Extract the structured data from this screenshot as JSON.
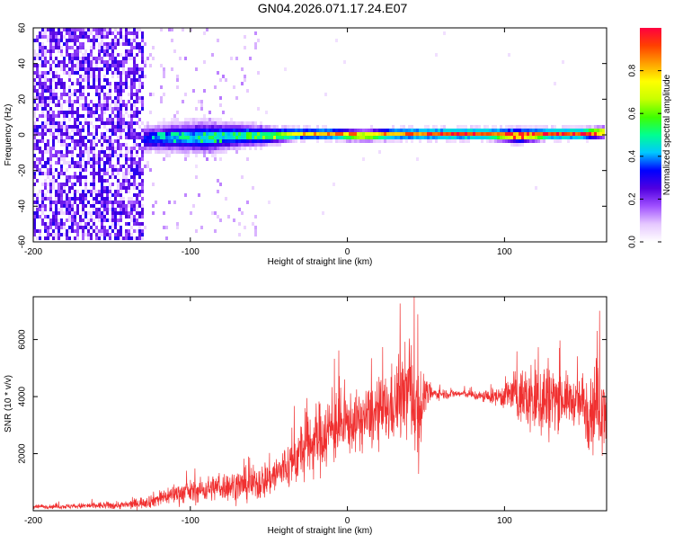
{
  "title": "GN04.2026.071.17.24.E07",
  "chart_data": [
    {
      "type": "heatmap",
      "name": "spectrogram",
      "xlabel": "Height of straight line (km)",
      "ylabel": "Frequency (Hz)",
      "xlim": [
        -200,
        165
      ],
      "ylim": [
        -60,
        60
      ],
      "xticks": [
        -200,
        -100,
        0,
        100
      ],
      "xtick_labels": [
        "-200",
        "-100",
        "0",
        "100"
      ],
      "yticks": [
        -60,
        -40,
        -20,
        0,
        20,
        40,
        60
      ],
      "ytick_labels": [
        "-60",
        "-40",
        "-20",
        "0",
        "20",
        "40",
        "60"
      ],
      "colorbar": {
        "label": "Normalized spectral amplitude",
        "range": [
          0,
          1
        ],
        "ticks": [
          0.0,
          0.2,
          0.4,
          0.6,
          0.8
        ],
        "tick_labels": [
          "0.0",
          "0.2",
          "0.4",
          "0.6",
          "0.8"
        ],
        "colormap": [
          "#ffffff",
          "#e6c8ff",
          "#a050ff",
          "#5000e0",
          "#0000ff",
          "#00c8ff",
          "#00ff90",
          "#40ff00",
          "#c8ff00",
          "#ffff00",
          "#ffa000",
          "#ff4000",
          "#ff0040"
        ]
      },
      "ridge": {
        "description": "dominant frequency band centered near 0 Hz",
        "x": [
          -130,
          -110,
          -90,
          -70,
          -50,
          -30,
          -10,
          10,
          30,
          50,
          70,
          90,
          110,
          130,
          150,
          165
        ],
        "center_hz": [
          -3,
          -2,
          -2,
          -1,
          -1,
          0,
          0,
          -1,
          0,
          0,
          0,
          0,
          -1,
          0,
          0,
          1
        ],
        "half_width_hz": [
          7,
          8,
          9,
          7,
          5,
          3,
          3,
          3,
          3,
          3,
          3,
          3,
          4,
          3,
          3,
          3
        ],
        "peak_amplitude": [
          0.35,
          0.4,
          0.45,
          0.45,
          0.55,
          0.75,
          0.8,
          0.8,
          0.8,
          0.85,
          0.9,
          0.9,
          0.85,
          0.9,
          0.9,
          0.85
        ]
      },
      "noise_region": {
        "description": "broadband scattered low-amplitude noise",
        "x_range": [
          -200,
          -130
        ],
        "amplitude": [
          0.15,
          0.3
        ]
      }
    },
    {
      "type": "line",
      "name": "snr",
      "xlabel": "Height of straight line (km)",
      "ylabel": "SNR (10 * v/v)",
      "xlim": [
        -200,
        165
      ],
      "ylim": [
        0,
        7500
      ],
      "xticks": [
        -200,
        -100,
        0,
        100
      ],
      "xtick_labels": [
        "-200",
        "-100",
        "0",
        "100"
      ],
      "yticks": [
        2000,
        4000,
        6000
      ],
      "ytick_labels": [
        "2000",
        "4000",
        "6000"
      ],
      "color": "#f03030",
      "series": [
        {
          "name": "SNR",
          "x": [
            -200,
            -180,
            -160,
            -140,
            -125,
            -110,
            -95,
            -80,
            -65,
            -55,
            -45,
            -35,
            -25,
            -15,
            -5,
            5,
            15,
            25,
            35,
            40,
            45,
            50,
            55,
            65,
            75,
            85,
            95,
            105,
            115,
            125,
            135,
            145,
            155,
            165
          ],
          "mean": [
            150,
            150,
            180,
            200,
            350,
            600,
            700,
            850,
            900,
            1000,
            1300,
            1700,
            2300,
            2700,
            3000,
            3100,
            3300,
            3500,
            4000,
            4300,
            3500,
            4100,
            4100,
            4100,
            4100,
            4000,
            4000,
            4100,
            3900,
            3900,
            4000,
            3800,
            3700,
            3700
          ],
          "amp": [
            100,
            100,
            150,
            180,
            300,
            450,
            500,
            600,
            700,
            800,
            900,
            1100,
            1400,
            1600,
            1500,
            1200,
            1400,
            1500,
            1900,
            2200,
            2600,
            600,
            250,
            200,
            150,
            250,
            350,
            900,
            1400,
            2000,
            1200,
            900,
            2000,
            1800
          ]
        }
      ]
    }
  ]
}
